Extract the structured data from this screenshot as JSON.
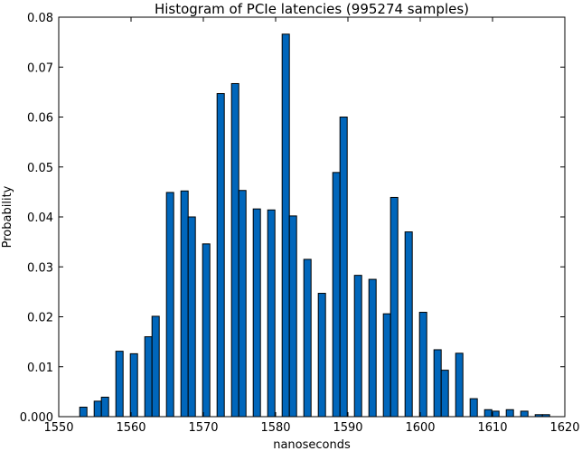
{
  "chart_data": {
    "type": "bar",
    "title": "Histogram of PCIe latencies (995274 samples)",
    "xlabel": "nanoseconds",
    "ylabel": "Probability",
    "xlim": [
      1550,
      1620
    ],
    "ylim": [
      0,
      0.08
    ],
    "x_ticks": [
      1550,
      1560,
      1570,
      1580,
      1590,
      1600,
      1610,
      1620
    ],
    "x_tick_labels": [
      "1550",
      "1560",
      "1570",
      "1580",
      "1590",
      "1600",
      "1610",
      "1620"
    ],
    "y_ticks": [
      0,
      0.01,
      0.02,
      0.03,
      0.04,
      0.05,
      0.06,
      0.07,
      0.08
    ],
    "y_tick_labels": [
      "0.000",
      "0.01",
      "0.02",
      "0.03",
      "0.04",
      "0.05",
      "0.06",
      "0.07",
      "0.08"
    ],
    "grid": false,
    "bar_width": 1.0,
    "series": [
      {
        "x": [
          1552.9,
          1554.9,
          1555.9,
          1557.9,
          1559.9,
          1561.9,
          1562.9,
          1564.9,
          1566.9,
          1567.9,
          1569.9,
          1571.9,
          1573.9,
          1574.9,
          1576.9,
          1578.9,
          1580.9,
          1581.9,
          1583.9,
          1585.9,
          1587.9,
          1588.9,
          1590.9,
          1592.9,
          1594.9,
          1595.9,
          1597.9,
          1599.9,
          1601.9,
          1602.9,
          1604.9,
          1606.9,
          1608.9,
          1609.9,
          1611.9,
          1613.9,
          1615.9,
          1616.9
        ],
        "values": [
          0.0019,
          0.0031,
          0.0039,
          0.0131,
          0.0126,
          0.016,
          0.0201,
          0.0449,
          0.0452,
          0.04,
          0.0346,
          0.0647,
          0.0667,
          0.0453,
          0.0416,
          0.0414,
          0.0766,
          0.0402,
          0.0315,
          0.0247,
          0.0489,
          0.06,
          0.0283,
          0.0275,
          0.0206,
          0.0439,
          0.037,
          0.0209,
          0.0134,
          0.0093,
          0.0127,
          0.0036,
          0.0014,
          0.0011,
          0.0014,
          0.0011,
          0.0004,
          0.0004
        ]
      }
    ]
  }
}
